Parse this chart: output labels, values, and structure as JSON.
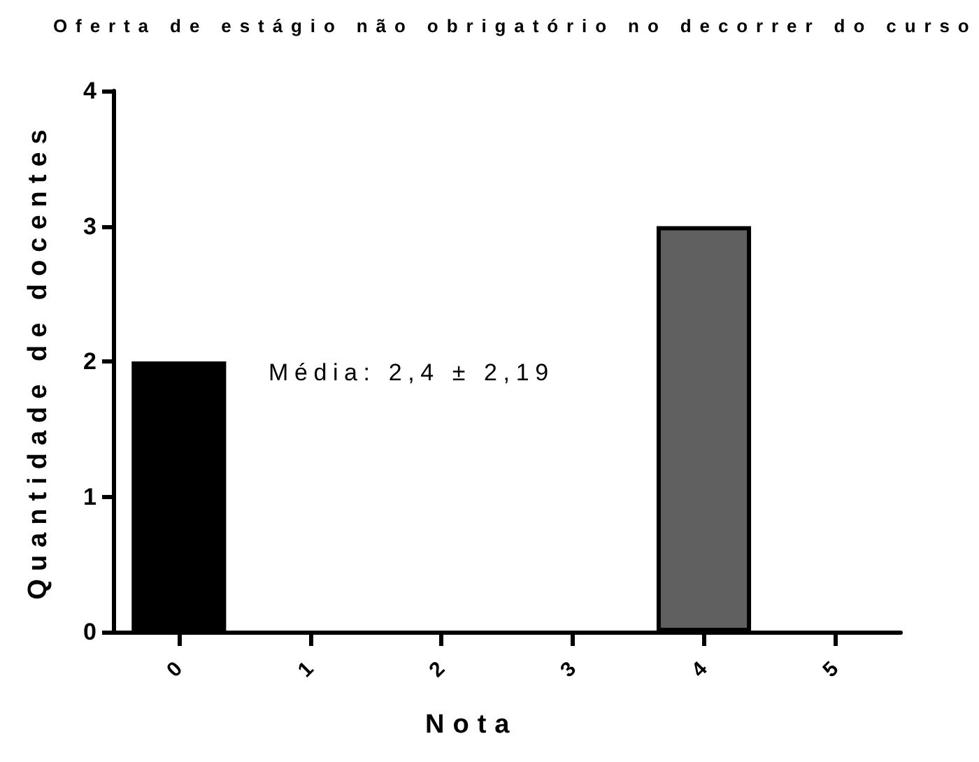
{
  "chart_data": {
    "type": "bar",
    "title": "Oferta de estágio não obrigatório no decorrer do curso",
    "xlabel": "Nota",
    "ylabel": "Quantidade de docentes",
    "categories": [
      "0",
      "1",
      "2",
      "3",
      "4",
      "5"
    ],
    "values": [
      2,
      0,
      0,
      0,
      3,
      0
    ],
    "colors": [
      "#000000",
      null,
      null,
      null,
      "#606060",
      null
    ],
    "ylim": [
      0,
      4
    ],
    "yticks": [
      0,
      1,
      2,
      3,
      4
    ],
    "grid": false,
    "annotations": [
      "Média: 2,4 ± 2,19"
    ]
  }
}
